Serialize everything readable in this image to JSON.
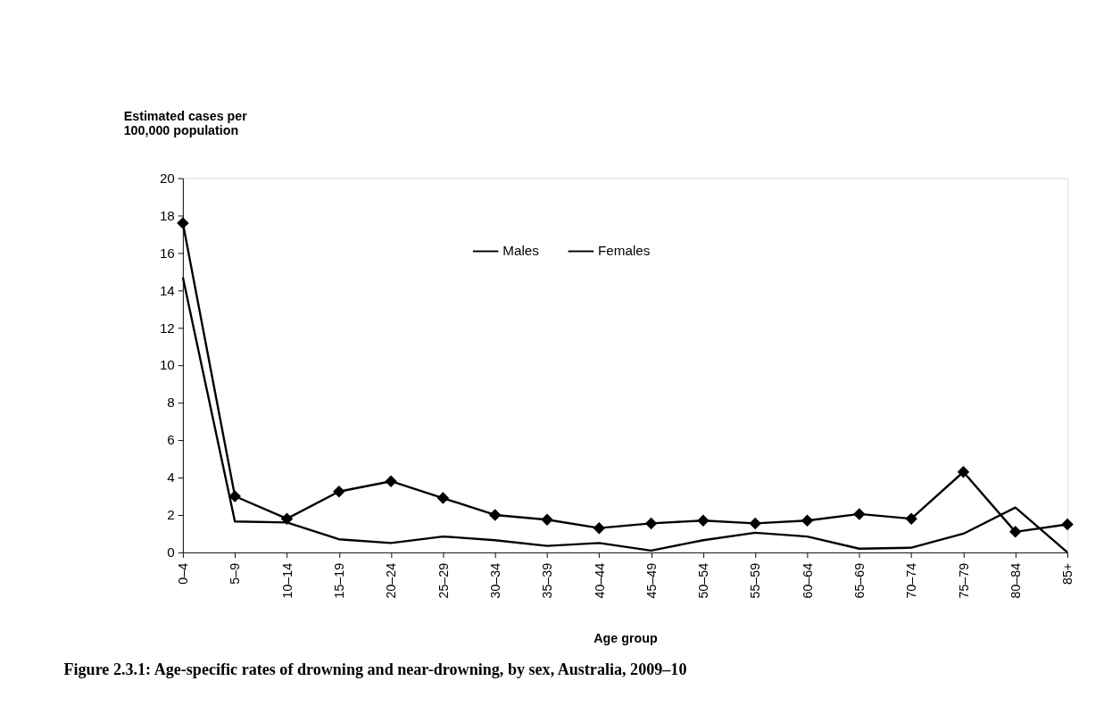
{
  "chart_data": {
    "type": "line",
    "title": "Figure 2.3.1: Age-specific rates of drowning and near-drowning, by sex, Australia, 2009–10",
    "xlabel": "Age group",
    "ylabel": "Estimated cases per\n100,000 population",
    "categories": [
      "0–4",
      "5–9",
      "10–14",
      "15–19",
      "20–24",
      "25–29",
      "30–34",
      "35–39",
      "40–44",
      "45–49",
      "50–54",
      "55–59",
      "60–64",
      "65–69",
      "70–74",
      "75–79",
      "80–84",
      "85+"
    ],
    "series": [
      {
        "name": "Males",
        "color": "#000000",
        "marker": "diamond",
        "values": [
          17.6,
          3.0,
          1.8,
          3.25,
          3.8,
          2.9,
          2.0,
          1.75,
          1.3,
          1.55,
          1.7,
          1.55,
          1.7,
          2.05,
          1.8,
          4.3,
          1.1,
          1.5
        ]
      },
      {
        "name": "Females",
        "color": "#000000",
        "marker": "none",
        "values": [
          14.7,
          1.65,
          1.6,
          0.7,
          0.5,
          0.85,
          0.65,
          0.35,
          0.5,
          0.1,
          0.65,
          1.05,
          0.85,
          0.2,
          0.25,
          1.0,
          2.4,
          0.0
        ]
      }
    ],
    "ylim": [
      0,
      20
    ],
    "yticks": [
      0,
      2,
      4,
      6,
      8,
      10,
      12,
      14,
      16,
      18,
      20
    ],
    "grid": false,
    "legend": "top",
    "line_style": "solid"
  }
}
